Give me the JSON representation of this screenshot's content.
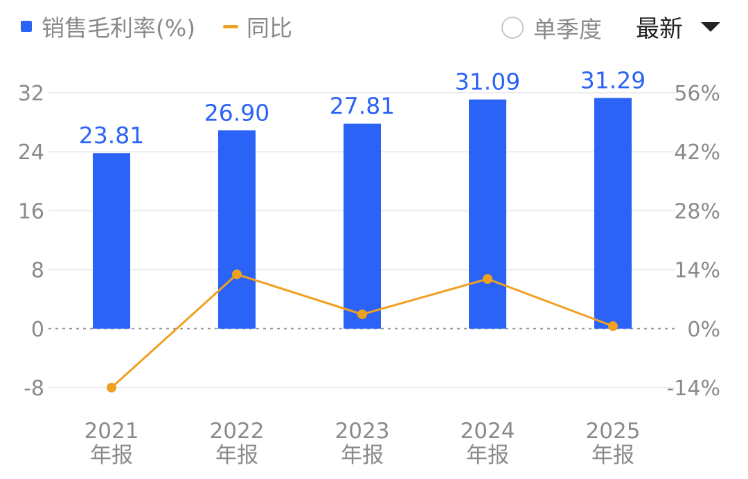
{
  "legend": {
    "bar_label": "销售毛利率(%)",
    "line_label": "同比",
    "bar_color": "#2b63f6",
    "line_color": "#f0a020"
  },
  "controls": {
    "single_quarter_label": "单季度",
    "single_quarter_checked": false,
    "period_label": "最新"
  },
  "chart_data": {
    "type": "bar",
    "categories": [
      [
        "2021",
        "年报"
      ],
      [
        "2022",
        "年报"
      ],
      [
        "2023",
        "年报"
      ],
      [
        "2024",
        "年报"
      ],
      [
        "2025",
        "年报"
      ]
    ],
    "series": [
      {
        "name": "销售毛利率(%)",
        "type": "bar",
        "axis": "left",
        "values": [
          23.81,
          26.9,
          27.81,
          31.09,
          31.29
        ],
        "labels": [
          "23.81",
          "26.90",
          "27.81",
          "31.09",
          "31.29"
        ]
      },
      {
        "name": "同比",
        "type": "line",
        "axis": "right",
        "values": [
          -14.0,
          12.9,
          3.4,
          11.8,
          0.6
        ]
      }
    ],
    "left_axis": {
      "ticks": [
        32,
        24,
        16,
        8,
        0,
        -8
      ],
      "tick_labels": [
        "32",
        "24",
        "16",
        "8",
        "0",
        "-8"
      ],
      "ylim": [
        -8,
        32
      ]
    },
    "right_axis": {
      "ticks": [
        56,
        42,
        28,
        14,
        0,
        -14
      ],
      "tick_labels": [
        "56%",
        "42%",
        "28%",
        "14%",
        "0%",
        "-14%"
      ],
      "ylim": [
        -14,
        56
      ]
    },
    "grid": true,
    "zero_line": "dashed"
  }
}
